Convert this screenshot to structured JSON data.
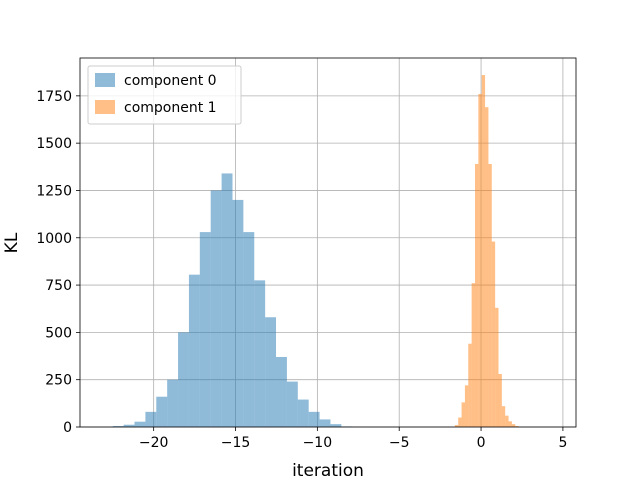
{
  "chart_data": {
    "type": "histogram",
    "xlabel": "iteration",
    "ylabel": "KL",
    "xlim": [
      -24.5,
      5.8
    ],
    "ylim": [
      0,
      1950
    ],
    "xticks": [
      -20,
      -15,
      -10,
      -5,
      0,
      5
    ],
    "xtick_labels": [
      "−20",
      "−15",
      "−10",
      "−5",
      "0",
      "5"
    ],
    "yticks": [
      0,
      250,
      500,
      750,
      1000,
      1250,
      1500,
      1750
    ],
    "ytick_labels": [
      "0",
      "250",
      "500",
      "750",
      "1000",
      "1250",
      "1500",
      "1750"
    ],
    "grid": true,
    "legend_position": "top-left",
    "series": [
      {
        "name": "component 0",
        "color": "#1f77b4",
        "opacity": 0.5,
        "bin_start": -22.5,
        "bin_width": 0.665,
        "counts": [
          5,
          12,
          28,
          80,
          160,
          250,
          500,
          805,
          1030,
          1250,
          1340,
          1200,
          1030,
          775,
          580,
          370,
          240,
          145,
          80,
          40,
          15,
          3,
          1
        ]
      },
      {
        "name": "component 1",
        "color": "#ff7f0e",
        "opacity": 0.5,
        "bin_start": -1.6,
        "bin_width": 0.205,
        "counts": [
          10,
          50,
          130,
          220,
          440,
          760,
          1390,
          1760,
          1860,
          1690,
          1390,
          980,
          630,
          280,
          110,
          60,
          30,
          15,
          5
        ]
      }
    ]
  }
}
